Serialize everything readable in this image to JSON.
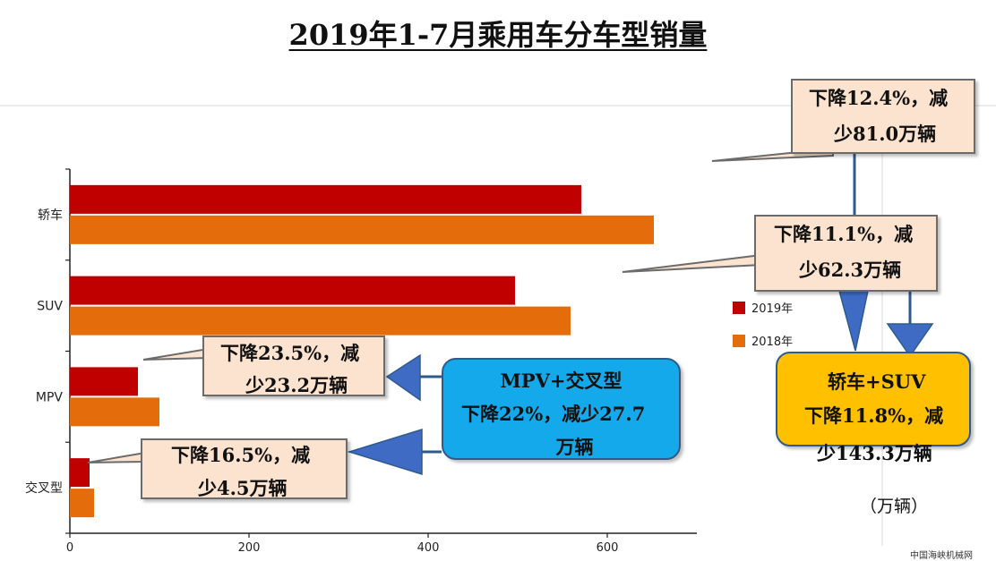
{
  "title": "2019年1-7月乘用车分车型销量",
  "chart_data": {
    "type": "bar",
    "orientation": "horizontal",
    "categories": [
      "轿车",
      "SUV",
      "MPV",
      "交叉型"
    ],
    "series": [
      {
        "name": "2019年",
        "color": "#c00000",
        "values": [
          571,
          497,
          76,
          22
        ]
      },
      {
        "name": "2018年",
        "color": "#e46c0a",
        "values": [
          652,
          559,
          100,
          27
        ]
      }
    ],
    "x_ticks": [
      0,
      200,
      400,
      600
    ],
    "xlim": [
      0,
      700
    ],
    "legend_position": "right",
    "unit": "（万辆）"
  },
  "callouts": {
    "sedan": [
      "下降12.4%，减",
      "少81.0万辆"
    ],
    "suv": [
      "下降11.1%，减",
      "少62.3万辆"
    ],
    "mpv": [
      "下降23.5%，减",
      "少23.2万辆"
    ],
    "cross": [
      "下降16.5%，减",
      "少4.5万辆"
    ],
    "mpv_cross": [
      "MPV+交叉型",
      "下降22%，减少27.7",
      "万辆"
    ],
    "sedan_suv": [
      "轿车+SUV",
      "下降11.8%，减",
      "少143.3万辆"
    ]
  },
  "source": "中国海峡机械网"
}
